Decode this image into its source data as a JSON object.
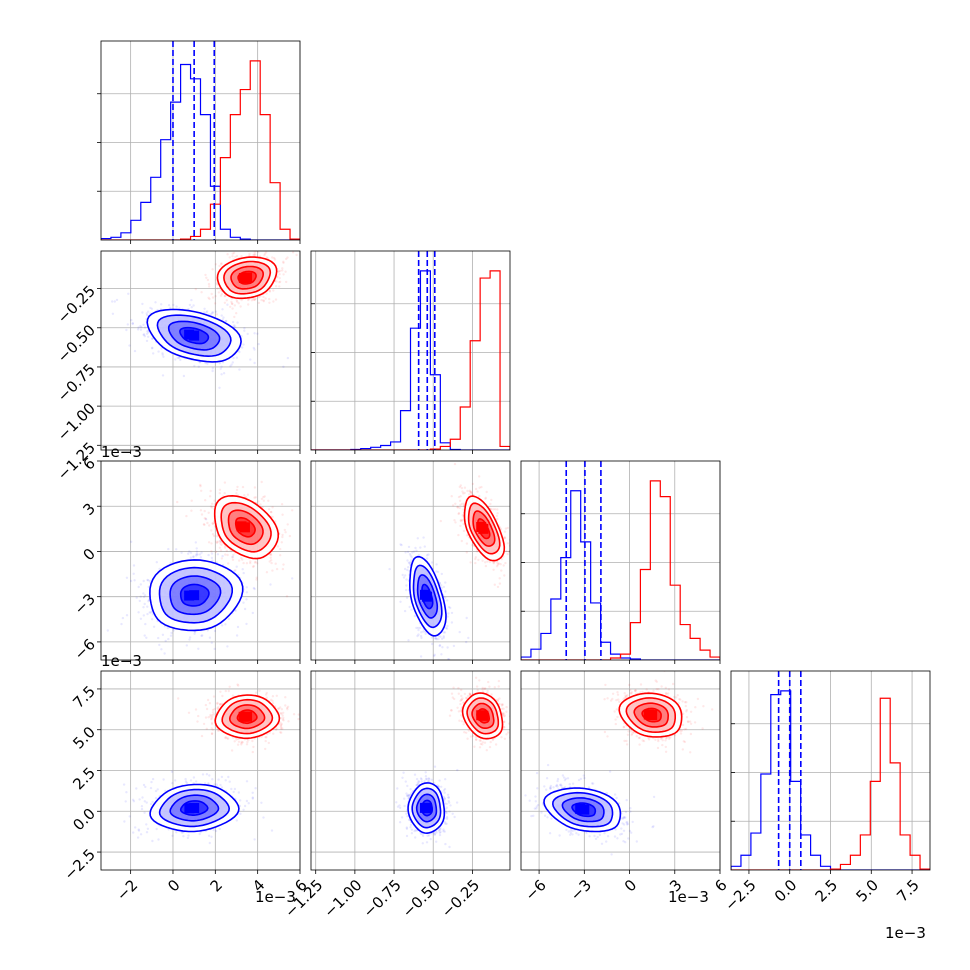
{
  "chart_data": {
    "type": "corner",
    "grid": true,
    "series": [
      {
        "color": "#0000ff",
        "quantile_lines": "dashed"
      },
      {
        "color": "#ff0000"
      }
    ],
    "parameters": [
      {
        "offset_label": "1e−3",
        "range": [
          -3.4,
          6.0
        ],
        "ticks": [
          -2,
          0,
          2,
          4,
          6
        ],
        "tick_labels": [
          "−2",
          "0",
          "2",
          "4",
          "6"
        ]
      },
      {
        "offset_label": "1e−3",
        "range": [
          -1.28,
          -0.01
        ],
        "ticks": [
          -1.25,
          -1.0,
          -0.75,
          -0.5,
          -0.25
        ],
        "tick_labels": [
          "−1.25",
          "−1.00",
          "−0.75",
          "−0.50",
          "−0.25"
        ]
      },
      {
        "offset_label": "1e−3",
        "range": [
          -7.2,
          6.0
        ],
        "ticks": [
          -6,
          -3,
          0,
          3,
          6
        ],
        "tick_labels": [
          "−6",
          "−3",
          "0",
          "3",
          "6"
        ]
      },
      {
        "offset_label": "1e−3",
        "range": [
          -3.6,
          8.6
        ],
        "ticks": [
          -2.5,
          0.0,
          2.5,
          5.0,
          7.5
        ],
        "tick_labels": [
          "−2.5",
          "0.0",
          "2.5",
          "5.0",
          "7.5"
        ]
      }
    ],
    "histograms": [
      {
        "bin_edges": [
          -3.4,
          -2.93,
          -2.46,
          -1.99,
          -1.52,
          -1.05,
          -0.58,
          -0.11,
          0.36,
          0.83,
          1.3,
          1.77,
          2.24,
          2.71,
          3.18,
          3.65,
          4.12,
          4.59,
          5.06,
          5.53,
          6.0
        ],
        "counts": [
          [
            0.8,
            1.5,
            4,
            11,
            21,
            35,
            56,
            77,
            98,
            90,
            70,
            30,
            6,
            1.5,
            0.5,
            0,
            0,
            0,
            0,
            0
          ],
          [
            0,
            0,
            0,
            0,
            0,
            0,
            0,
            0,
            0.5,
            2,
            6,
            20,
            46,
            70,
            84,
            100,
            70,
            32,
            6,
            0.5
          ]
        ],
        "quantiles_blue": [
          0.0,
          1.0,
          1.95
        ]
      },
      {
        "bin_edges": [
          -1.28,
          -1.2165,
          -1.153,
          -1.0895,
          -1.026,
          -0.9625,
          -0.899,
          -0.8355,
          -0.772,
          -0.7085,
          -0.645,
          -0.5815,
          -0.518,
          -0.4545,
          -0.391,
          -0.3275,
          -0.264,
          -0.2005,
          -0.137,
          -0.0735,
          -0.01
        ],
        "counts": [
          [
            0,
            0,
            0,
            0,
            0.3,
            0.8,
            1.5,
            2.5,
            4.5,
            22,
            68,
            100,
            42,
            4,
            0.3,
            0,
            0,
            0,
            0,
            0
          ],
          [
            0,
            0,
            0,
            0,
            0,
            0,
            0,
            0,
            0,
            0,
            0,
            0,
            0.5,
            2,
            6,
            24,
            61,
            96,
            100,
            2
          ]
        ],
        "quantiles_blue": [
          -0.593,
          -0.538,
          -0.49
        ]
      },
      {
        "bin_edges": [
          -7.2,
          -6.54,
          -5.88,
          -5.22,
          -4.56,
          -3.9,
          -3.24,
          -2.58,
          -1.92,
          -1.26,
          -0.6,
          0.06,
          0.72,
          1.38,
          2.04,
          2.7,
          3.36,
          4.02,
          4.68,
          5.34,
          6.0
        ],
        "counts": [
          [
            1.5,
            5.5,
            13.5,
            31,
            52,
            86,
            60,
            29,
            9,
            3,
            1,
            0.5,
            0,
            0,
            0,
            0,
            0,
            0,
            0,
            0
          ],
          [
            0,
            0,
            0,
            0,
            0,
            0,
            0,
            0,
            0,
            1,
            3,
            19,
            46,
            91,
            83,
            38,
            18,
            11,
            5,
            1.5
          ]
        ],
        "quantiles_blue": [
          -4.2,
          -2.96,
          -1.9
        ]
      },
      {
        "bin_edges": [
          -3.6,
          -2.99,
          -2.38,
          -1.77,
          -1.16,
          -0.55,
          0.06,
          0.67,
          1.28,
          1.89,
          2.5,
          3.11,
          3.72,
          4.33,
          4.94,
          5.55,
          6.16,
          6.77,
          7.38,
          7.99,
          8.6
        ],
        "counts": [
          [
            2,
            8,
            20,
            52,
            95,
            97,
            48,
            19,
            8,
            2,
            0.5,
            0,
            0,
            0,
            0,
            0,
            0,
            0,
            0,
            0
          ],
          [
            0,
            0,
            0,
            0,
            0,
            0,
            0,
            0,
            0,
            0,
            0.5,
            3,
            8,
            19,
            48,
            93,
            58,
            19,
            8,
            0.5
          ]
        ],
        "quantiles_blue": [
          -0.68,
          0.0,
          0.68
        ]
      }
    ],
    "pairs": [
      {
        "row": 1,
        "col": 0,
        "blue": {
          "mean": [
            1.0,
            -0.55
          ],
          "sd": [
            0.95,
            0.075
          ],
          "corr": -0.35
        },
        "red": {
          "mean": [
            3.5,
            -0.18
          ],
          "sd": [
            0.6,
            0.06
          ],
          "corr": 0.15
        }
      },
      {
        "row": 2,
        "col": 0,
        "blue": {
          "mean": [
            1.0,
            -2.9
          ],
          "sd": [
            0.95,
            1.05
          ],
          "corr": 0.1
        },
        "red": {
          "mean": [
            3.4,
            1.6
          ],
          "sd": [
            0.65,
            0.9
          ],
          "corr": -0.3
        }
      },
      {
        "row": 2,
        "col": 1,
        "blue": {
          "mean": [
            -0.54,
            -3.0
          ],
          "sd": [
            0.05,
            1.1
          ],
          "corr": -0.45
        },
        "red": {
          "mean": [
            -0.18,
            1.5
          ],
          "sd": [
            0.055,
            0.9
          ],
          "corr": -0.55
        }
      },
      {
        "row": 3,
        "col": 0,
        "blue": {
          "mean": [
            1.0,
            0.2
          ],
          "sd": [
            0.9,
            0.6
          ],
          "corr": 0.1
        },
        "red": {
          "mean": [
            3.5,
            5.8
          ],
          "sd": [
            0.65,
            0.55
          ],
          "corr": 0.05
        }
      },
      {
        "row": 3,
        "col": 1,
        "blue": {
          "mean": [
            -0.54,
            0.2
          ],
          "sd": [
            0.05,
            0.65
          ],
          "corr": -0.05
        },
        "red": {
          "mean": [
            -0.18,
            5.85
          ],
          "sd": [
            0.055,
            0.6
          ],
          "corr": -0.25
        }
      },
      {
        "row": 3,
        "col": 2,
        "blue": {
          "mean": [
            -3.0,
            0.1
          ],
          "sd": [
            1.1,
            0.6
          ],
          "corr": -0.3
        },
        "red": {
          "mean": [
            1.5,
            5.9
          ],
          "sd": [
            0.9,
            0.6
          ],
          "corr": -0.2
        }
      }
    ]
  }
}
